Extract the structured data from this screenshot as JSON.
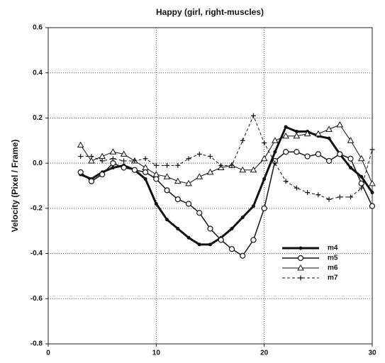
{
  "chart_data": {
    "type": "line",
    "title": "Happy  (girl,  right-muscles)",
    "y_label": "Velocity  (Pixel    /  Frame)",
    "x": [
      3,
      4,
      5,
      6,
      7,
      8,
      9,
      10,
      11,
      12,
      13,
      14,
      15,
      16,
      17,
      18,
      19,
      20,
      21,
      22,
      23,
      24,
      25,
      26,
      27,
      28,
      29,
      30
    ],
    "xlim": [
      0,
      30
    ],
    "xticks": [
      0,
      10,
      20,
      30
    ],
    "ylim": [
      -0.8,
      0.6
    ],
    "yticks": [
      -0.8,
      -0.6,
      -0.4,
      -0.2,
      {
        "value": 0,
        "label": "0.0"
      },
      0.2,
      0.4,
      0.6
    ],
    "grid": true,
    "legend": "lower right",
    "series": [
      {
        "name": "m4",
        "color": "#111111",
        "marker": "filled-circle",
        "width": 3,
        "dash": false,
        "values": [
          -0.05,
          -0.07,
          -0.04,
          -0.02,
          -0.01,
          -0.03,
          -0.07,
          -0.18,
          -0.25,
          -0.29,
          -0.33,
          -0.36,
          -0.36,
          -0.33,
          -0.29,
          -0.24,
          -0.19,
          -0.07,
          0.05,
          0.16,
          0.14,
          0.14,
          0.12,
          0.11,
          0.04,
          -0.02,
          -0.06,
          -0.13
        ]
      },
      {
        "name": "m5",
        "color": "#111111",
        "marker": "open-circle",
        "width": 1.5,
        "dash": false,
        "values": [
          -0.04,
          -0.08,
          -0.05,
          0.0,
          -0.02,
          -0.03,
          -0.04,
          -0.07,
          -0.12,
          -0.16,
          -0.18,
          -0.22,
          -0.29,
          -0.34,
          -0.38,
          -0.41,
          -0.34,
          -0.2,
          0.01,
          0.05,
          0.05,
          0.03,
          0.04,
          0.01,
          0.04,
          0.02,
          -0.09,
          -0.19
        ]
      },
      {
        "name": "m6",
        "color": "#111111",
        "marker": "triangle",
        "width": 1,
        "dash": false,
        "values": [
          0.08,
          0.01,
          0.03,
          0.05,
          0.04,
          0.01,
          -0.02,
          -0.05,
          -0.06,
          -0.08,
          -0.09,
          -0.06,
          -0.04,
          -0.02,
          -0.01,
          -0.03,
          -0.03,
          0.02,
          0.1,
          0.12,
          0.12,
          0.13,
          0.13,
          0.15,
          0.17,
          0.1,
          0.02,
          -0.09
        ]
      },
      {
        "name": "m7",
        "color": "#111111",
        "marker": "plus",
        "width": 1,
        "dash": true,
        "values": [
          0.03,
          0.03,
          0.01,
          0.02,
          0.01,
          0.01,
          0.02,
          -0.01,
          -0.01,
          -0.01,
          0.02,
          0.04,
          0.03,
          -0.01,
          -0.01,
          0.1,
          0.21,
          0.09,
          0.0,
          -0.08,
          -0.11,
          -0.13,
          -0.14,
          -0.16,
          -0.15,
          -0.15,
          -0.11,
          0.06
        ]
      }
    ]
  }
}
